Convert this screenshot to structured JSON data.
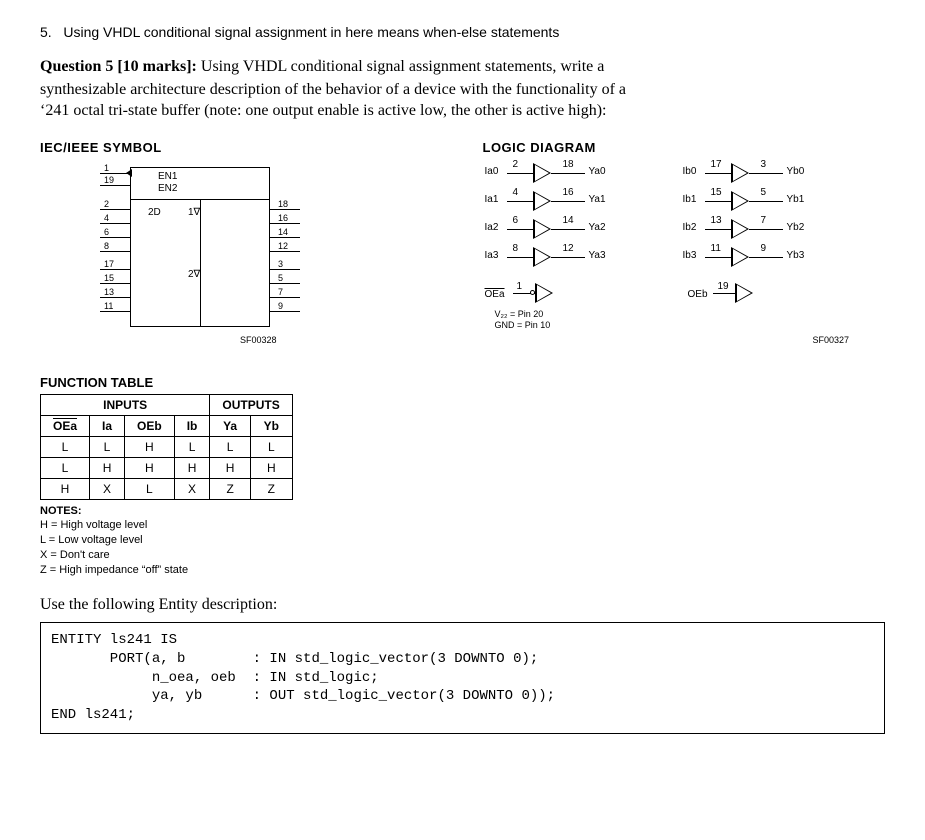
{
  "intro_number": "5.",
  "intro_text": "Using VHDL conditional signal assignment in here means when-else statements",
  "question_label": "Question 5 [10 marks]:",
  "question_text_1": " Using VHDL conditional signal assignment statements, write a",
  "question_text_2": "synthesizable architecture description of the behavior of a device with the functionality of a",
  "question_text_3": "‘241 octal tri-state buffer (note: one output enable is active low, the other is active high):",
  "iec_title": "IEC/IEEE SYMBOL",
  "logic_title": "LOGIC DIAGRAM",
  "iec": {
    "en1": "EN1",
    "en2": "EN2",
    "oneinv": "1∇",
    "twoinv": "2∇",
    "pins_left": [
      "1",
      "19",
      "2",
      "4",
      "6",
      "8",
      "17",
      "15",
      "13",
      "11"
    ],
    "pins_right": [
      "18",
      "16",
      "14",
      "12",
      "3",
      "5",
      "7",
      "9"
    ],
    "inner_2d": "2D",
    "sf": "SF00328"
  },
  "logic": {
    "rows_a": [
      {
        "in": "Ia0",
        "pin_in": "2",
        "out": "Ya0",
        "pin_out": "18"
      },
      {
        "in": "Ia1",
        "pin_in": "4",
        "out": "Ya1",
        "pin_out": "16"
      },
      {
        "in": "Ia2",
        "pin_in": "6",
        "out": "Ya2",
        "pin_out": "14"
      },
      {
        "in": "Ia3",
        "pin_in": "8",
        "out": "Ya3",
        "pin_out": "12"
      }
    ],
    "rows_b": [
      {
        "in": "Ib0",
        "pin_in": "17",
        "out": "Yb0",
        "pin_out": "3"
      },
      {
        "in": "Ib1",
        "pin_in": "15",
        "out": "Yb1",
        "pin_out": "5"
      },
      {
        "in": "Ib2",
        "pin_in": "13",
        "out": "Yb2",
        "pin_out": "7"
      },
      {
        "in": "Ib3",
        "pin_in": "11",
        "out": "Yb3",
        "pin_out": "9"
      }
    ],
    "oea": "OEa",
    "oea_pin": "1",
    "oeb": "OEb",
    "oeb_pin": "19",
    "vcc": "V₂₂ = Pin 20",
    "gnd": "GND = Pin 10",
    "sf": "SF00327"
  },
  "ft_title": "FUNCTION TABLE",
  "ft": {
    "head_inputs": "INPUTS",
    "head_outputs": "OUTPUTS",
    "cols": [
      "OEa",
      "Ia",
      "OEb",
      "Ib",
      "Ya",
      "Yb"
    ],
    "rows": [
      [
        "L",
        "L",
        "H",
        "L",
        "L",
        "L"
      ],
      [
        "L",
        "H",
        "H",
        "H",
        "H",
        "H"
      ],
      [
        "H",
        "X",
        "L",
        "X",
        "Z",
        "Z"
      ]
    ]
  },
  "notes_title": "NOTES:",
  "notes": [
    "H  =   High voltage level",
    "L   =   Low voltage level",
    "X  =   Don't care",
    "Z   =   High impedance “off” state"
  ],
  "use_entity": "Use the following Entity description:",
  "code": "ENTITY ls241 IS\n       PORT(a, b        : IN std_logic_vector(3 DOWNTO 0);\n            n_oea, oeb  : IN std_logic;\n            ya, yb      : OUT std_logic_vector(3 DOWNTO 0));\nEND ls241;"
}
